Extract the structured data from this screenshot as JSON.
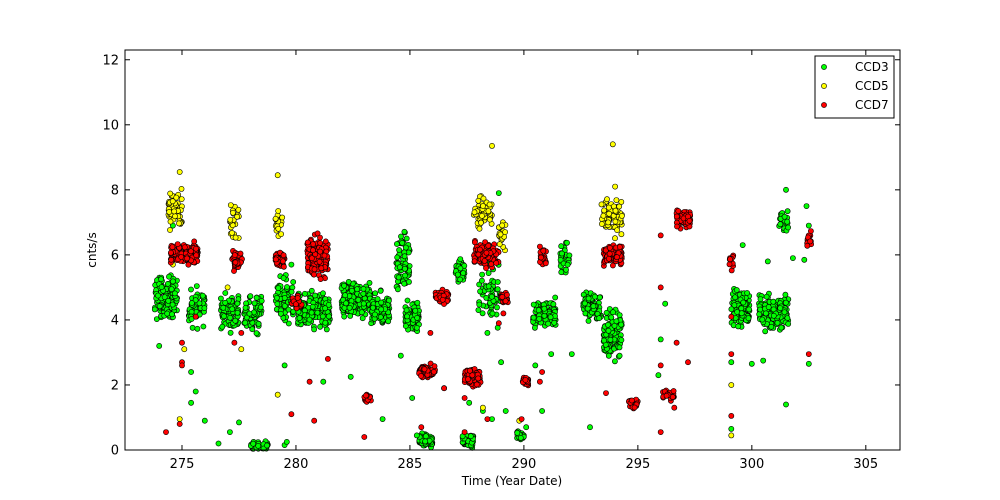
{
  "chart_data": {
    "type": "scatter",
    "title": "",
    "xlabel": "Time (Year Date)",
    "ylabel": "cnts/s",
    "xlim": [
      272.5,
      306.5
    ],
    "ylim": [
      0,
      12.3
    ],
    "xticks": [
      275,
      280,
      285,
      290,
      295,
      300,
      305
    ],
    "yticks": [
      0,
      2,
      4,
      6,
      8,
      10,
      12
    ],
    "grid": false,
    "legend_position": "top-right",
    "colors": {
      "CCD3": "#00ff00",
      "CCD5": "#ffff00",
      "CCD7": "#ff0000"
    },
    "series": [
      {
        "name": "CCD3",
        "clusters": [
          {
            "x": [
              273.8,
              274.8
            ],
            "y": [
              3.8,
              5.6
            ],
            "n": 140
          },
          {
            "x": [
              275.3,
              276.0
            ],
            "y": [
              3.6,
              5.2
            ],
            "n": 70
          },
          {
            "x": [
              276.7,
              277.5
            ],
            "y": [
              3.5,
              5.0
            ],
            "n": 90
          },
          {
            "x": [
              277.7,
              278.5
            ],
            "y": [
              3.4,
              5.0
            ],
            "n": 70
          },
          {
            "x": [
              278.0,
              278.8
            ],
            "y": [
              0.0,
              0.3
            ],
            "n": 50
          },
          {
            "x": [
              279.1,
              279.9
            ],
            "y": [
              3.6,
              5.6
            ],
            "n": 60
          },
          {
            "x": [
              280.0,
              281.5
            ],
            "y": [
              3.5,
              5.0
            ],
            "n": 180
          },
          {
            "x": [
              282.0,
              283.3
            ],
            "y": [
              3.8,
              5.4
            ],
            "n": 180
          },
          {
            "x": [
              283.3,
              284.1
            ],
            "y": [
              3.6,
              5.0
            ],
            "n": 90
          },
          {
            "x": [
              284.4,
              285.0
            ],
            "y": [
              4.6,
              7.0
            ],
            "n": 70
          },
          {
            "x": [
              284.8,
              285.4
            ],
            "y": [
              3.4,
              4.8
            ],
            "n": 90
          },
          {
            "x": [
              285.4,
              286.0
            ],
            "y": [
              0.0,
              0.6
            ],
            "n": 90
          },
          {
            "x": [
              287.0,
              287.4
            ],
            "y": [
              5.0,
              6.0
            ],
            "n": 50
          },
          {
            "x": [
              287.3,
              287.8
            ],
            "y": [
              0.0,
              0.6
            ],
            "n": 60
          },
          {
            "x": [
              288.0,
              289.0
            ],
            "y": [
              3.6,
              6.0
            ],
            "n": 60
          },
          {
            "x": [
              289.7,
              290.0
            ],
            "y": [
              0.2,
              0.7
            ],
            "n": 30
          },
          {
            "x": [
              290.4,
              291.4
            ],
            "y": [
              3.6,
              4.8
            ],
            "n": 100
          },
          {
            "x": [
              291.6,
              292.0
            ],
            "y": [
              5.3,
              6.5
            ],
            "n": 30
          },
          {
            "x": [
              292.6,
              293.4
            ],
            "y": [
              3.8,
              5.0
            ],
            "n": 90
          },
          {
            "x": [
              293.5,
              294.3
            ],
            "y": [
              2.6,
              4.6
            ],
            "n": 110
          },
          {
            "x": [
              299.1,
              299.9
            ],
            "y": [
              3.6,
              5.2
            ],
            "n": 110
          },
          {
            "x": [
              300.3,
              301.6
            ],
            "y": [
              3.5,
              4.9
            ],
            "n": 180
          },
          {
            "x": [
              301.2,
              301.6
            ],
            "y": [
              6.4,
              7.6
            ],
            "n": 30
          }
        ],
        "points": [
          [
            274.0,
            3.2
          ],
          [
            274.6,
            6.9
          ],
          [
            275.4,
            2.4
          ],
          [
            275.6,
            1.8
          ],
          [
            275.4,
            1.45
          ],
          [
            276.0,
            0.9
          ],
          [
            276.6,
            0.2
          ],
          [
            277.1,
            0.55
          ],
          [
            277.5,
            0.85
          ],
          [
            279.5,
            2.6
          ],
          [
            279.5,
            0.15
          ],
          [
            279.6,
            0.25
          ],
          [
            279.8,
            5.7
          ],
          [
            281.2,
            2.1
          ],
          [
            282.4,
            2.25
          ],
          [
            283.8,
            0.95
          ],
          [
            284.6,
            2.9
          ],
          [
            285.1,
            1.6
          ],
          [
            285.3,
            0.45
          ],
          [
            286.5,
            1.9
          ],
          [
            287.6,
            1.45
          ],
          [
            288.2,
            1.2
          ],
          [
            288.6,
            0.95
          ],
          [
            288.4,
            3.6
          ],
          [
            288.9,
            7.9
          ],
          [
            289.0,
            2.7
          ],
          [
            289.2,
            1.2
          ],
          [
            290.1,
            0.7
          ],
          [
            290.5,
            2.6
          ],
          [
            290.8,
            1.2
          ],
          [
            291.2,
            2.95
          ],
          [
            292.1,
            2.95
          ],
          [
            292.9,
            0.7
          ],
          [
            294.2,
            2.9
          ],
          [
            295.9,
            2.3
          ],
          [
            296.0,
            3.4
          ],
          [
            296.2,
            4.5
          ],
          [
            299.1,
            2.7
          ],
          [
            299.1,
            0.65
          ],
          [
            299.4,
            3.8
          ],
          [
            299.6,
            6.3
          ],
          [
            300.0,
            2.65
          ],
          [
            300.5,
            2.75
          ],
          [
            300.7,
            5.8
          ],
          [
            301.5,
            1.4
          ],
          [
            301.8,
            5.9
          ],
          [
            302.3,
            5.85
          ],
          [
            302.5,
            6.9
          ],
          [
            302.5,
            2.65
          ],
          [
            302.4,
            7.5
          ],
          [
            301.5,
            8.0
          ]
        ]
      },
      {
        "name": "CCD5",
        "clusters": [
          {
            "x": [
              274.4,
              275.0
            ],
            "y": [
              6.6,
              8.2
            ],
            "n": 60
          },
          {
            "x": [
              277.1,
              277.5
            ],
            "y": [
              6.2,
              7.8
            ],
            "n": 25
          },
          {
            "x": [
              279.1,
              279.4
            ],
            "y": [
              6.4,
              7.6
            ],
            "n": 20
          },
          {
            "x": [
              287.8,
              288.6
            ],
            "y": [
              6.6,
              8.0
            ],
            "n": 50
          },
          {
            "x": [
              288.9,
              289.2
            ],
            "y": [
              5.8,
              7.4
            ],
            "n": 20
          },
          {
            "x": [
              293.4,
              294.3
            ],
            "y": [
              6.4,
              8.0
            ],
            "n": 80
          }
        ],
        "points": [
          [
            274.9,
            8.55
          ],
          [
            279.2,
            8.45
          ],
          [
            288.6,
            9.35
          ],
          [
            293.9,
            9.4
          ],
          [
            274.9,
            0.95
          ],
          [
            275.1,
            3.1
          ],
          [
            277.6,
            3.1
          ],
          [
            279.2,
            1.7
          ],
          [
            288.2,
            1.3
          ],
          [
            289.8,
            0.9
          ],
          [
            299.1,
            2.0
          ],
          [
            299.1,
            0.45
          ],
          [
            277.0,
            5.0
          ],
          [
            274.6,
            5.7
          ],
          [
            293.7,
            7.0
          ],
          [
            294.0,
            8.1
          ],
          [
            294.3,
            7.2
          ]
        ]
      },
      {
        "name": "CCD7",
        "clusters": [
          {
            "x": [
              274.5,
              275.7
            ],
            "y": [
              5.6,
              6.5
            ],
            "n": 130
          },
          {
            "x": [
              277.2,
              277.7
            ],
            "y": [
              5.3,
              6.3
            ],
            "n": 40
          },
          {
            "x": [
              279.1,
              279.5
            ],
            "y": [
              5.5,
              6.2
            ],
            "n": 40
          },
          {
            "x": [
              279.8,
              280.3
            ],
            "y": [
              4.3,
              4.9
            ],
            "n": 20
          },
          {
            "x": [
              280.5,
              281.4
            ],
            "y": [
              5.0,
              6.8
            ],
            "n": 150
          },
          {
            "x": [
              283.0,
              283.3
            ],
            "y": [
              1.4,
              1.8
            ],
            "n": 15
          },
          {
            "x": [
              285.4,
              286.1
            ],
            "y": [
              2.1,
              2.7
            ],
            "n": 60
          },
          {
            "x": [
              286.1,
              286.7
            ],
            "y": [
              4.4,
              5.0
            ],
            "n": 50
          },
          {
            "x": [
              287.4,
              288.1
            ],
            "y": [
              1.9,
              2.6
            ],
            "n": 70
          },
          {
            "x": [
              287.8,
              288.9
            ],
            "y": [
              5.5,
              6.5
            ],
            "n": 110
          },
          {
            "x": [
              289.0,
              289.3
            ],
            "y": [
              4.4,
              5.0
            ],
            "n": 20
          },
          {
            "x": [
              289.9,
              290.2
            ],
            "y": [
              1.8,
              2.4
            ],
            "n": 25
          },
          {
            "x": [
              290.7,
              291.0
            ],
            "y": [
              5.6,
              6.3
            ],
            "n": 20
          },
          {
            "x": [
              293.5,
              294.3
            ],
            "y": [
              5.6,
              6.4
            ],
            "n": 90
          },
          {
            "x": [
              294.6,
              295.0
            ],
            "y": [
              1.2,
              1.6
            ],
            "n": 25
          },
          {
            "x": [
              296.1,
              296.6
            ],
            "y": [
              1.5,
              1.9
            ],
            "n": 25
          },
          {
            "x": [
              296.7,
              297.3
            ],
            "y": [
              6.7,
              7.5
            ],
            "n": 70
          },
          {
            "x": [
              302.4,
              302.6
            ],
            "y": [
              6.1,
              6.8
            ],
            "n": 15
          },
          {
            "x": [
              299.0,
              299.2
            ],
            "y": [
              5.5,
              6.1
            ],
            "n": 10
          }
        ],
        "points": [
          [
            274.3,
            0.55
          ],
          [
            274.9,
            0.8
          ],
          [
            275.0,
            2.7
          ],
          [
            275.0,
            2.6
          ],
          [
            275.0,
            3.3
          ],
          [
            275.6,
            4.1
          ],
          [
            277.3,
            3.3
          ],
          [
            277.6,
            3.6
          ],
          [
            279.8,
            1.1
          ],
          [
            280.6,
            2.1
          ],
          [
            280.8,
            0.9
          ],
          [
            281.4,
            2.8
          ],
          [
            283.0,
            0.4
          ],
          [
            285.5,
            0.7
          ],
          [
            285.9,
            3.6
          ],
          [
            286.5,
            1.9
          ],
          [
            287.4,
            1.6
          ],
          [
            287.4,
            0.55
          ],
          [
            288.4,
            0.95
          ],
          [
            288.9,
            3.9
          ],
          [
            289.1,
            4.2
          ],
          [
            289.9,
            0.95
          ],
          [
            290.7,
            2.1
          ],
          [
            290.8,
            2.4
          ],
          [
            293.6,
            1.75
          ],
          [
            296.0,
            6.6
          ],
          [
            296.0,
            5.0
          ],
          [
            296.0,
            2.6
          ],
          [
            296.0,
            0.55
          ],
          [
            296.6,
            1.3
          ],
          [
            296.7,
            3.3
          ],
          [
            297.2,
            2.7
          ],
          [
            299.1,
            4.1
          ],
          [
            299.1,
            1.05
          ],
          [
            299.1,
            2.95
          ],
          [
            302.5,
            2.95
          ]
        ]
      }
    ]
  }
}
